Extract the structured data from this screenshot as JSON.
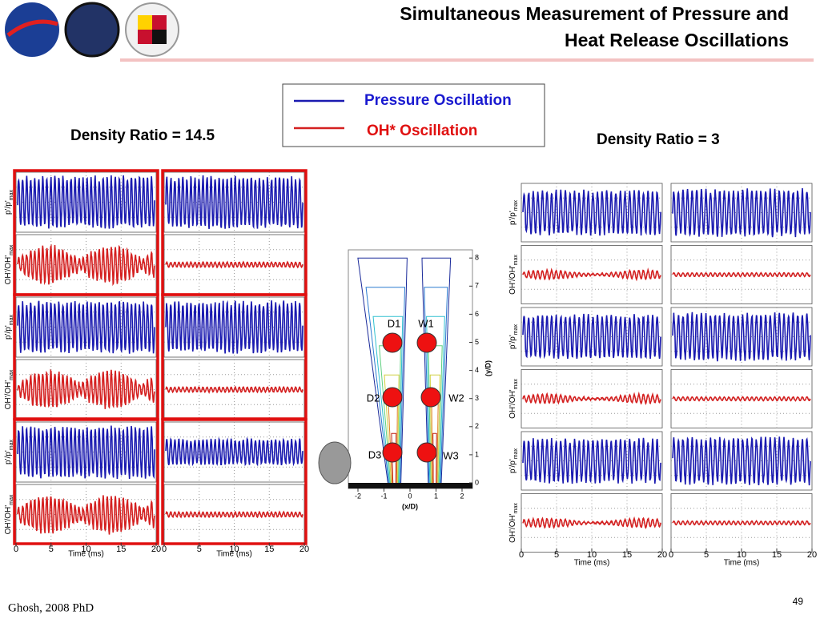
{
  "header": {
    "title_line1": "Simultaneous Measurement of Pressure and",
    "title_line2": "Heat Release Oscillations"
  },
  "legend": {
    "items": [
      "Pressure Oscillation",
      "OH* Oscillation"
    ]
  },
  "left_panel": {
    "label": "Density Ratio = 14.5",
    "pressure_label": {
      "main": "p'/p'",
      "sub": "max"
    },
    "oh_label": {
      "main": "OH'/OH'",
      "sub": "max"
    },
    "x_ticks": [
      0,
      5,
      10,
      15,
      20
    ],
    "x_label": "Time (ms)"
  },
  "right_panel": {
    "label": "Density Ratio = 3",
    "pressure_label": {
      "main": "p'/p'",
      "sub": "max"
    },
    "oh_label": {
      "main": "OH'/OH'",
      "sub": "max"
    },
    "x_ticks": [
      0,
      5,
      10,
      15,
      20
    ],
    "x_label": "Time (ms)"
  },
  "flame": {
    "points": [
      "D1",
      "W1",
      "D2",
      "W2",
      "D3",
      "W3"
    ],
    "y_ticks": [
      0,
      1,
      2,
      3,
      4,
      5,
      6,
      7,
      8
    ],
    "x_ticks": [
      -2,
      -1,
      0,
      1,
      2
    ],
    "x_label": "(x/D)",
    "y_label": "(y/D)"
  },
  "footer": {
    "credit": "Ghosh, 2008 PhD",
    "page": "49"
  }
}
